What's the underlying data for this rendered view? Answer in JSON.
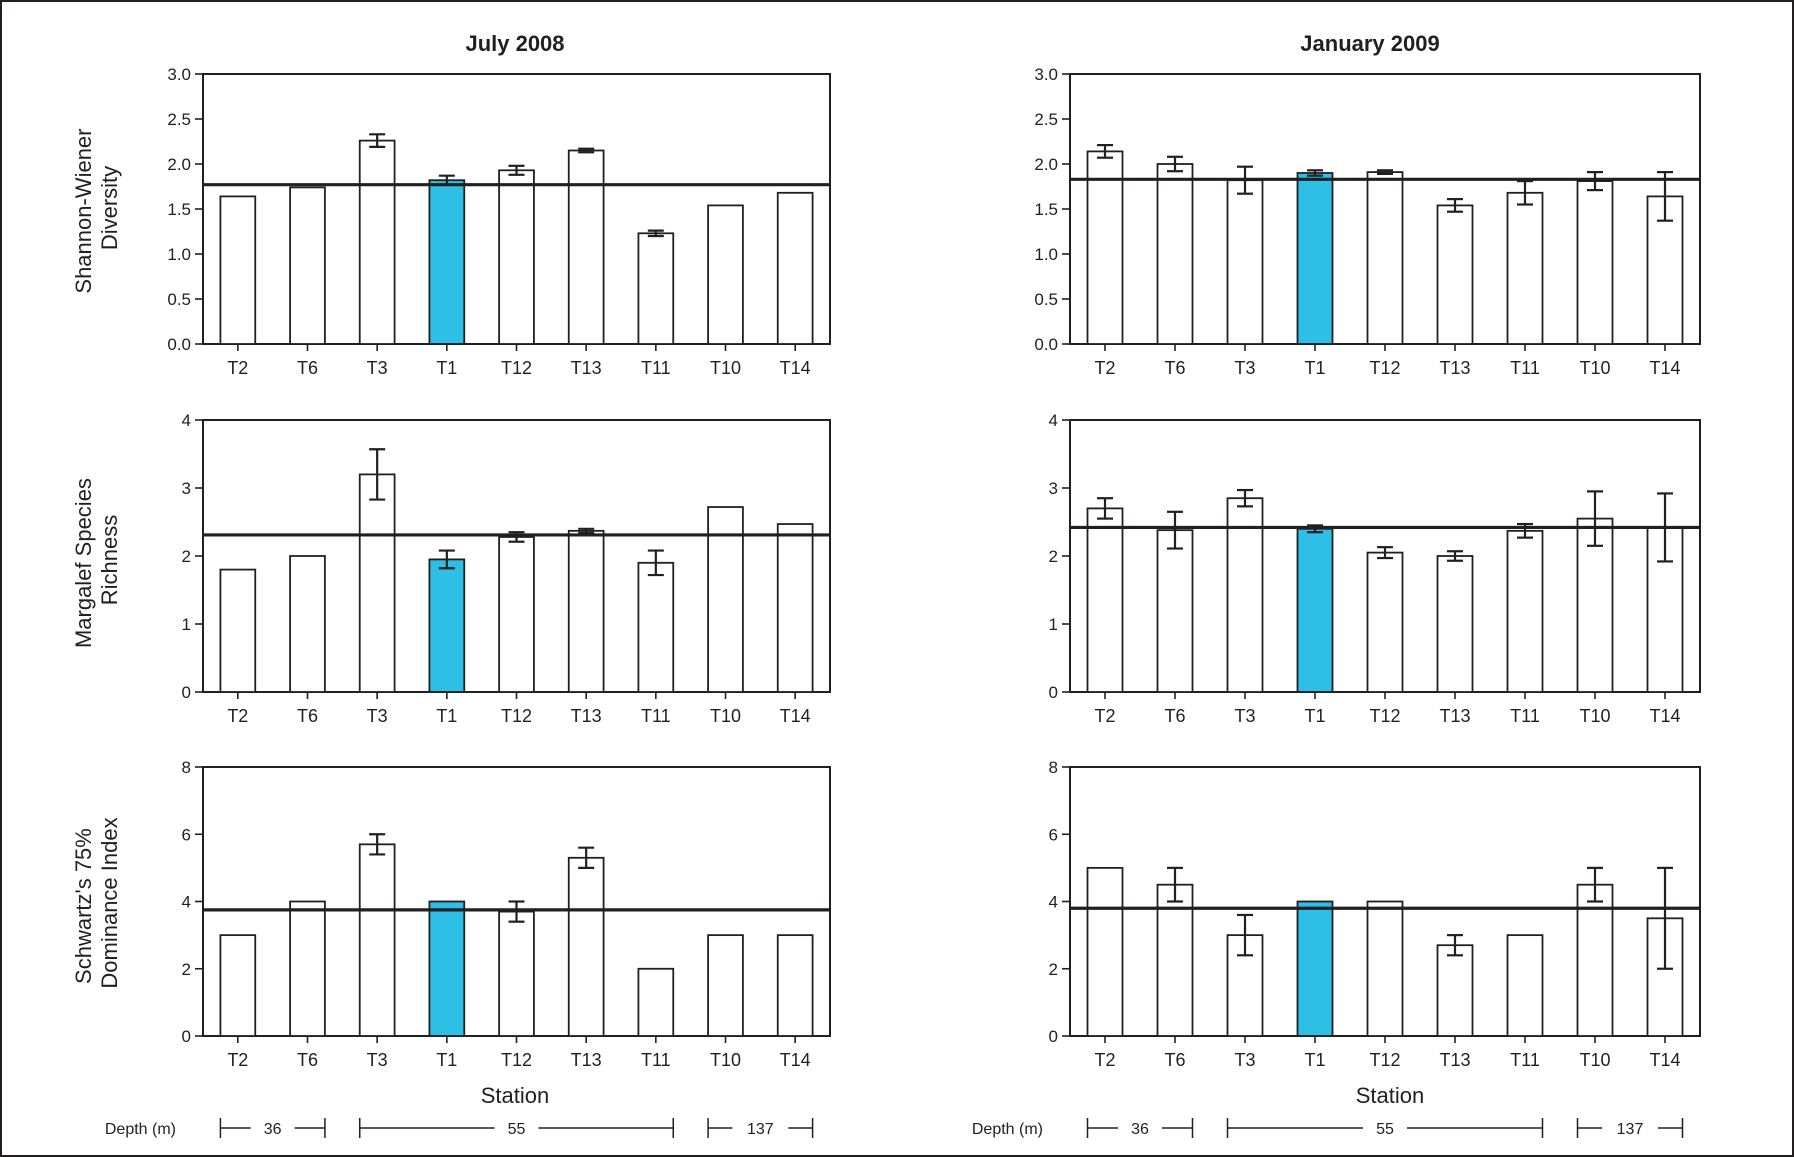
{
  "figure": {
    "depth_label": "Depth (m)",
    "depth_groups": [
      {
        "label": "36",
        "from": "T2",
        "to": "T6"
      },
      {
        "label": "55",
        "from": "T3",
        "to": "T11"
      },
      {
        "label": "137",
        "from": "T10",
        "to": "T14"
      }
    ],
    "colors": {
      "bar": "#ffffff",
      "highlight": "#2ebfe6",
      "ink": "#231f20"
    },
    "highlight_category": "T1"
  },
  "columns": [
    {
      "title": "July 2008",
      "xlabel": "Station"
    },
    {
      "title": "January 2009",
      "xlabel": "Station"
    }
  ],
  "row_labels": [
    [
      "Shannon-Wiener",
      "Diversity"
    ],
    [
      "Margalef Species",
      "Richness"
    ],
    [
      "Schwartz's 75%",
      "Dominance Index"
    ]
  ],
  "chart_data": [
    {
      "type": "bar",
      "column": "July 2008",
      "row": "Shannon-Wiener Diversity",
      "categories": [
        "T2",
        "T6",
        "T3",
        "T1",
        "T12",
        "T13",
        "T11",
        "T10",
        "T14"
      ],
      "values": [
        1.64,
        1.74,
        2.26,
        1.82,
        1.93,
        2.15,
        1.23,
        1.54,
        1.68
      ],
      "errors": [
        0.0,
        0.0,
        0.07,
        0.05,
        0.05,
        0.02,
        0.03,
        0.0,
        0.0
      ],
      "reference_line": 1.77,
      "ylim": [
        0,
        3.0
      ],
      "yticks": [
        "0.0",
        "0.5",
        "1.0",
        "1.5",
        "2.0",
        "2.5",
        "3.0"
      ],
      "ytick_values": [
        0,
        0.5,
        1.0,
        1.5,
        2.0,
        2.5,
        3.0
      ]
    },
    {
      "type": "bar",
      "column": "January 2009",
      "row": "Shannon-Wiener Diversity",
      "categories": [
        "T2",
        "T6",
        "T3",
        "T1",
        "T12",
        "T13",
        "T11",
        "T10",
        "T14"
      ],
      "values": [
        2.14,
        2.0,
        1.82,
        1.9,
        1.91,
        1.54,
        1.68,
        1.81,
        1.64
      ],
      "errors": [
        0.07,
        0.08,
        0.15,
        0.03,
        0.02,
        0.07,
        0.13,
        0.1,
        0.27
      ],
      "reference_line": 1.83,
      "ylim": [
        0,
        3.0
      ],
      "yticks": [
        "0.0",
        "0.5",
        "1.0",
        "1.5",
        "2.0",
        "2.5",
        "3.0"
      ],
      "ytick_values": [
        0,
        0.5,
        1.0,
        1.5,
        2.0,
        2.5,
        3.0
      ]
    },
    {
      "type": "bar",
      "column": "July 2008",
      "row": "Margalef Species Richness",
      "categories": [
        "T2",
        "T6",
        "T3",
        "T1",
        "T12",
        "T13",
        "T11",
        "T10",
        "T14"
      ],
      "values": [
        1.8,
        2.0,
        3.2,
        1.95,
        2.28,
        2.37,
        1.9,
        2.72,
        2.47
      ],
      "errors": [
        0.0,
        0.0,
        0.37,
        0.13,
        0.07,
        0.03,
        0.18,
        0.0,
        0.0
      ],
      "reference_line": 2.31,
      "ylim": [
        0,
        4
      ],
      "yticks": [
        "0",
        "1",
        "2",
        "3",
        "4"
      ],
      "ytick_values": [
        0,
        1,
        2,
        3,
        4
      ]
    },
    {
      "type": "bar",
      "column": "January 2009",
      "row": "Margalef Species Richness",
      "categories": [
        "T2",
        "T6",
        "T3",
        "T1",
        "T12",
        "T13",
        "T11",
        "T10",
        "T14"
      ],
      "values": [
        2.7,
        2.38,
        2.85,
        2.4,
        2.05,
        2.0,
        2.37,
        2.55,
        2.42
      ],
      "errors": [
        0.15,
        0.27,
        0.12,
        0.05,
        0.08,
        0.07,
        0.1,
        0.4,
        0.5
      ],
      "reference_line": 2.42,
      "ylim": [
        0,
        4
      ],
      "yticks": [
        "0",
        "1",
        "2",
        "3",
        "4"
      ],
      "ytick_values": [
        0,
        1,
        2,
        3,
        4
      ]
    },
    {
      "type": "bar",
      "column": "July 2008",
      "row": "Schwartz's 75% Dominance Index",
      "categories": [
        "T2",
        "T6",
        "T3",
        "T1",
        "T12",
        "T13",
        "T11",
        "T10",
        "T14"
      ],
      "values": [
        3.0,
        4.0,
        5.7,
        4.0,
        3.7,
        5.3,
        2.0,
        3.0,
        3.0
      ],
      "errors": [
        0.0,
        0.0,
        0.3,
        0.0,
        0.3,
        0.3,
        0.0,
        0.0,
        0.0
      ],
      "reference_line": 3.75,
      "ylim": [
        0,
        8
      ],
      "yticks": [
        "0",
        "2",
        "4",
        "6",
        "8"
      ],
      "ytick_values": [
        0,
        2,
        4,
        6,
        8
      ]
    },
    {
      "type": "bar",
      "column": "January 2009",
      "row": "Schwartz's 75% Dominance Index",
      "categories": [
        "T2",
        "T6",
        "T3",
        "T1",
        "T12",
        "T13",
        "T11",
        "T10",
        "T14"
      ],
      "values": [
        5.0,
        4.5,
        3.0,
        4.0,
        4.0,
        2.7,
        3.0,
        4.5,
        3.5
      ],
      "errors": [
        0.0,
        0.5,
        0.6,
        0.0,
        0.0,
        0.3,
        0.0,
        0.5,
        1.5
      ],
      "reference_line": 3.8,
      "ylim": [
        0,
        8
      ],
      "yticks": [
        "0",
        "2",
        "4",
        "6",
        "8"
      ],
      "ytick_values": [
        0,
        2,
        4,
        6,
        8
      ]
    }
  ]
}
